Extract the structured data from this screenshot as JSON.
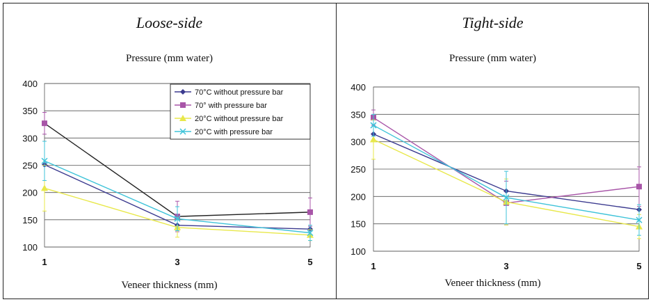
{
  "chart_data": [
    {
      "type": "line",
      "title": "Loose-side",
      "subtitle": "Pressure (mm water)",
      "xlabel": "Veneer thickness (mm)",
      "ylabel": "",
      "x": [
        1,
        3,
        5
      ],
      "xticks": [
        "1",
        "3",
        "5"
      ],
      "ylim": [
        100,
        400
      ],
      "yticks": [
        "100",
        "150",
        "200",
        "250",
        "300",
        "350",
        "400"
      ],
      "grid": true,
      "legend": "top-right",
      "series": [
        {
          "name": "70°C without pressure bar",
          "color": "#3b3a8f",
          "marker": "diamond",
          "values": [
            251,
            140,
            133
          ],
          "err": [
            0,
            0,
            0
          ]
        },
        {
          "name": "70° with pressure bar",
          "color": "#a855a8",
          "marker": "square",
          "line_color": "#222222",
          "values": [
            327,
            156,
            164
          ],
          "err": [
            20,
            28,
            26
          ]
        },
        {
          "name": "20°C without pressure bar",
          "color": "#e8e84a",
          "marker": "triangle",
          "values": [
            208,
            136,
            122
          ],
          "err": [
            42,
            18,
            10
          ]
        },
        {
          "name": "20°C with pressure bar",
          "color": "#3ec3d9",
          "marker": "x",
          "values": [
            258,
            152,
            126
          ],
          "err": [
            36,
            22,
            14
          ]
        }
      ]
    },
    {
      "type": "line",
      "title": "Tight-side",
      "subtitle": "Pressure (mm water)",
      "xlabel": "Veneer thickness (mm)",
      "ylabel": "",
      "x": [
        1,
        3,
        5
      ],
      "xticks": [
        "1",
        "3",
        "5"
      ],
      "ylim": [
        100,
        400
      ],
      "yticks": [
        "100",
        "150",
        "200",
        "250",
        "300",
        "350",
        "400"
      ],
      "grid": true,
      "legend": "none",
      "series": [
        {
          "name": "70°C without pressure bar",
          "color": "#3b3a8f",
          "marker": "diamond",
          "values": [
            314,
            210,
            176
          ],
          "err": [
            0,
            0,
            0
          ]
        },
        {
          "name": "70° with pressure bar",
          "color": "#a855a8",
          "marker": "square",
          "values": [
            344,
            188,
            218
          ],
          "err": [
            14,
            40,
            36
          ]
        },
        {
          "name": "20°C without pressure bar",
          "color": "#e8e84a",
          "marker": "triangle",
          "values": [
            304,
            190,
            145
          ],
          "err": [
            36,
            42,
            22
          ]
        },
        {
          "name": "20°C with pressure bar",
          "color": "#3ec3d9",
          "marker": "x",
          "values": [
            330,
            198,
            157
          ],
          "err": [
            20,
            48,
            28
          ]
        }
      ]
    }
  ]
}
